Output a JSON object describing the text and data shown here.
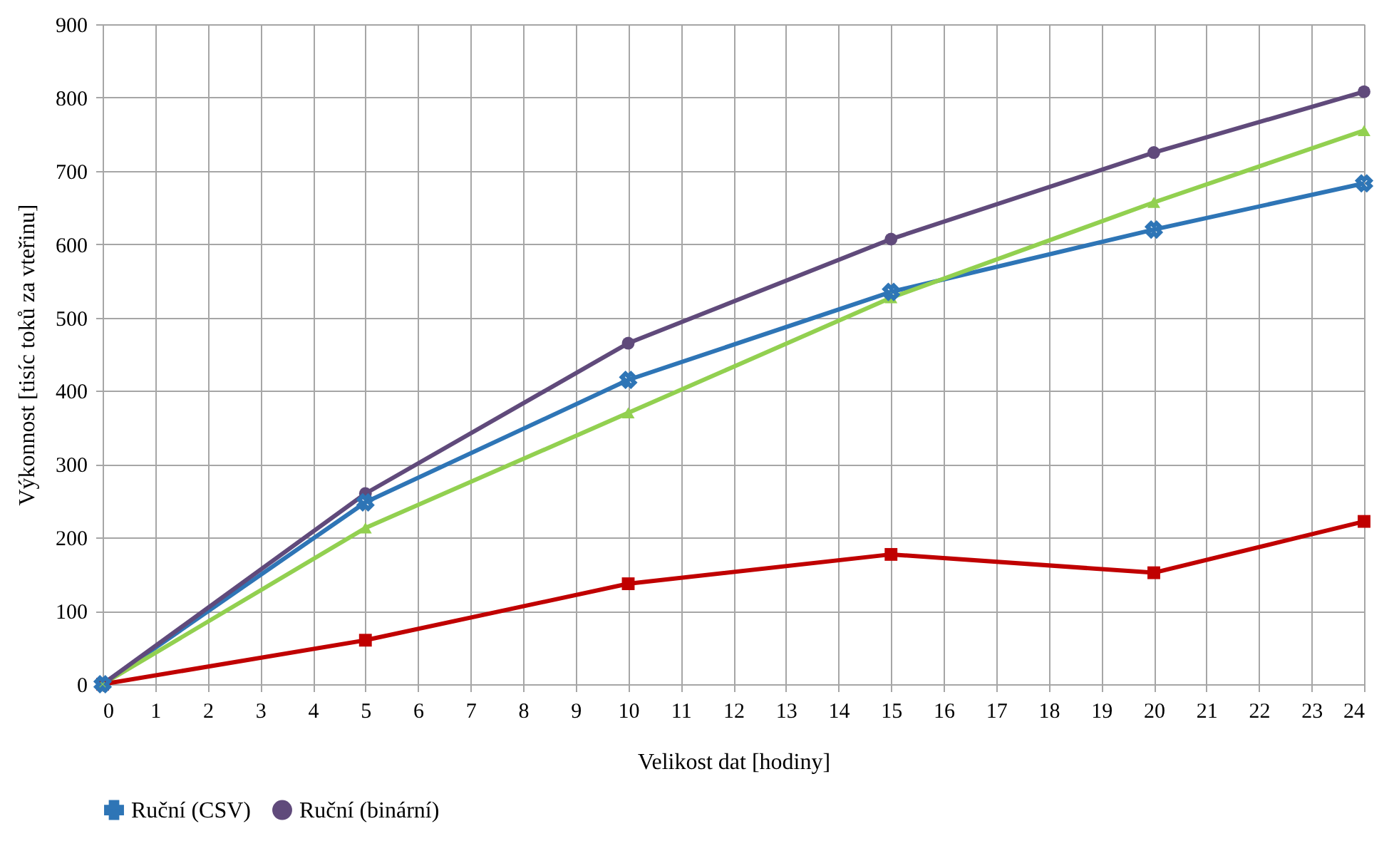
{
  "chart_data": {
    "type": "line",
    "xlabel": "Velikost dat [hodiny]",
    "ylabel": "Výkonnost [tisíc toků za vteřinu]",
    "x": [
      0,
      5,
      10,
      15,
      20,
      24
    ],
    "series": [
      {
        "name": "Ruční (CSV)",
        "color": "#2e75b6",
        "marker": "cross",
        "values": [
          0,
          248,
          415,
          535,
          620,
          683
        ]
      },
      {
        "color": "#92d050",
        "marker": "triangle",
        "values": [
          0,
          213,
          370,
          527,
          657,
          755
        ]
      },
      {
        "color": "#c00000",
        "marker": "square",
        "values": [
          0,
          60,
          137,
          177,
          152,
          222
        ]
      },
      {
        "name": "Ruční (binární)",
        "color": "#604a7b",
        "marker": "circle",
        "values": [
          0,
          260,
          465,
          607,
          725,
          808
        ]
      }
    ],
    "xlim": [
      0,
      24
    ],
    "xticks": [
      0,
      1,
      2,
      3,
      4,
      5,
      6,
      7,
      8,
      9,
      10,
      11,
      12,
      13,
      14,
      15,
      16,
      17,
      18,
      19,
      20,
      21,
      22,
      23,
      24
    ],
    "ylim": [
      0,
      900
    ],
    "yticks": [
      0,
      100,
      200,
      300,
      400,
      500,
      600,
      700,
      800,
      900
    ],
    "grid": true,
    "legend": "bottom",
    "line_style": "solid"
  }
}
